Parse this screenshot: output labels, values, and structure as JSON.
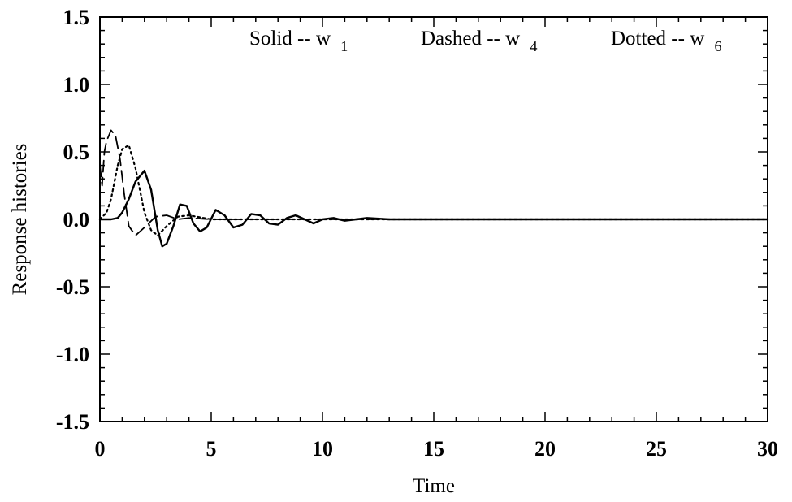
{
  "chart_data": {
    "type": "line",
    "title": "",
    "xlabel": "Time",
    "ylabel": "Response histories",
    "xlim": [
      0,
      30
    ],
    "ylim": [
      -1.5,
      1.5
    ],
    "xticks": [
      "0",
      "5",
      "10",
      "15",
      "20",
      "25",
      "30"
    ],
    "yticks": [
      "1.5",
      "1.0",
      "0.5",
      "0.0",
      "-0.5",
      "-1.0",
      "-1.5"
    ],
    "grid": false,
    "legend_position": "top",
    "annotations": [
      {
        "label": "Solid -- w",
        "sub": "1"
      },
      {
        "label": "Dashed -- w",
        "sub": "4"
      },
      {
        "label": "Dotted -- w",
        "sub": "6"
      }
    ],
    "series": [
      {
        "style": "solid",
        "x": [
          0,
          0.5,
          0.8,
          1.0,
          1.3,
          1.6,
          2.0,
          2.3,
          2.6,
          2.8,
          3.0,
          3.3,
          3.6,
          3.9,
          4.2,
          4.5,
          4.8,
          5.2,
          5.6,
          6.0,
          6.4,
          6.8,
          7.2,
          7.6,
          8.0,
          8.4,
          8.8,
          9.2,
          9.6,
          10.0,
          10.5,
          11.0,
          11.5,
          12.0,
          13.0,
          14.0,
          30.0
        ],
        "y": [
          0.0,
          0.0,
          0.01,
          0.05,
          0.15,
          0.28,
          0.36,
          0.22,
          -0.08,
          -0.2,
          -0.18,
          -0.05,
          0.11,
          0.1,
          -0.03,
          -0.09,
          -0.06,
          0.07,
          0.03,
          -0.06,
          -0.04,
          0.04,
          0.03,
          -0.03,
          -0.04,
          0.01,
          0.03,
          0.0,
          -0.03,
          0.0,
          0.01,
          -0.01,
          0.0,
          0.01,
          0.0,
          0.0,
          0.0
        ]
      },
      {
        "style": "dashed",
        "x": [
          0,
          0.1,
          0.2,
          0.3,
          0.5,
          0.7,
          0.9,
          1.1,
          1.3,
          1.6,
          2.0,
          2.5,
          3.0,
          3.5,
          4.0,
          5.0,
          6.0,
          8.0,
          30.0
        ],
        "y": [
          0.4,
          0.25,
          0.5,
          0.58,
          0.66,
          0.62,
          0.45,
          0.18,
          -0.05,
          -0.12,
          -0.06,
          0.02,
          0.03,
          0.0,
          0.01,
          0.0,
          0.0,
          0.0,
          0.0
        ]
      },
      {
        "style": "dotted",
        "x": [
          0,
          0.3,
          0.5,
          0.8,
          1.0,
          1.3,
          1.6,
          2.0,
          2.3,
          2.6,
          3.0,
          3.5,
          4.0,
          5.0,
          6.0,
          30.0
        ],
        "y": [
          0.0,
          0.05,
          0.15,
          0.4,
          0.52,
          0.55,
          0.38,
          0.05,
          -0.08,
          -0.12,
          -0.05,
          0.02,
          0.03,
          0.0,
          0.0,
          0.0
        ]
      }
    ]
  }
}
